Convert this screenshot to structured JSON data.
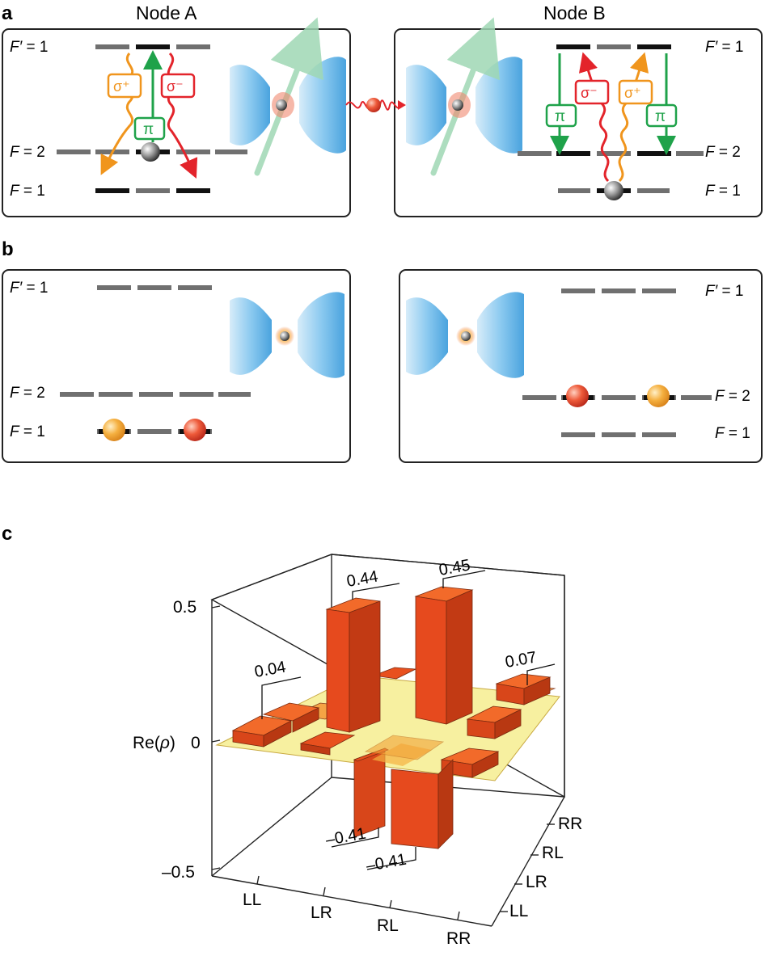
{
  "panel_labels": {
    "a": "a",
    "b": "b",
    "c": "c"
  },
  "node_titles": {
    "a": "Node A",
    "b": "Node B"
  },
  "levels": {
    "fprime_letter": "F′",
    "f_letter": "F",
    "eq1": " = 1",
    "eq2": " = 2"
  },
  "transitions": {
    "sigma_plus": "σ⁺",
    "sigma_minus": "σ⁻",
    "pi": "π"
  },
  "colors": {
    "sigma_plus": "#f0951d",
    "sigma_minus": "#e3242b",
    "pi": "#1fa24a",
    "cavity": "#6db8e6",
    "bar": "#e64a1e",
    "plane": "#f7f0a0"
  },
  "chart_data": {
    "type": "bar3d",
    "zlabel_prefix": "Re(",
    "zlabel_symbol": "ρ",
    "zlabel_suffix": ")",
    "z_ticks": [
      "0.5",
      "0",
      "–0.5"
    ],
    "x_ticks": [
      "LL",
      "LR",
      "RL",
      "RR"
    ],
    "y_ticks": [
      "LL",
      "LR",
      "RL",
      "RR"
    ],
    "annotations": [
      "0.04",
      "0.44",
      "0.45",
      "0.07",
      "–0.41",
      "–0.41"
    ]
  }
}
